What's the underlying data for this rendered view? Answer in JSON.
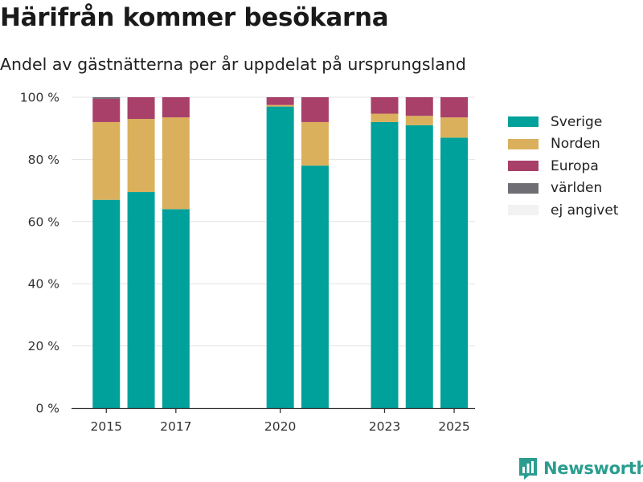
{
  "title": "Härifrån kommer besökarna",
  "subtitle": "Andel av gästnätterna per år uppdelat på ursprungsland",
  "brand": "Newsworthy",
  "chart_data": {
    "type": "bar",
    "stacked": true,
    "x_domain": [
      2014.0,
      2025.6
    ],
    "ylim": [
      0,
      100
    ],
    "y_ticks": [
      0,
      20,
      40,
      60,
      80,
      100
    ],
    "y_tick_labels": [
      "0 %",
      "20 %",
      "40 %",
      "60 %",
      "80 %",
      "100 %"
    ],
    "x_ticks": [
      2015,
      2017,
      2020,
      2023,
      2025
    ],
    "x_tick_labels": [
      "2015",
      "2017",
      "2020",
      "2023",
      "2025"
    ],
    "years": [
      2015,
      2016,
      2017,
      2020,
      2021,
      2023,
      2024,
      2025
    ],
    "series": [
      {
        "name": "Sverige",
        "color": "#00a19a",
        "values": [
          67,
          69.5,
          64,
          97,
          78,
          92,
          91,
          87
        ]
      },
      {
        "name": "Norden",
        "color": "#dbb05c",
        "values": [
          25,
          23.5,
          29.5,
          0.5,
          14,
          2.7,
          3,
          6.5
        ]
      },
      {
        "name": "Europa",
        "color": "#a8406a",
        "values": [
          7.5,
          7,
          6.5,
          2.5,
          8,
          5.3,
          6,
          6.5
        ]
      },
      {
        "name": "världen",
        "color": "#6e6e74",
        "values": [
          0.5,
          0,
          0,
          0,
          0,
          0,
          0,
          0
        ]
      },
      {
        "name": "ej angivet",
        "color": "#f2f2f2",
        "values": [
          0,
          0,
          0,
          0,
          0,
          0,
          0,
          0
        ]
      }
    ],
    "grid": true,
    "legend_position": "right"
  }
}
